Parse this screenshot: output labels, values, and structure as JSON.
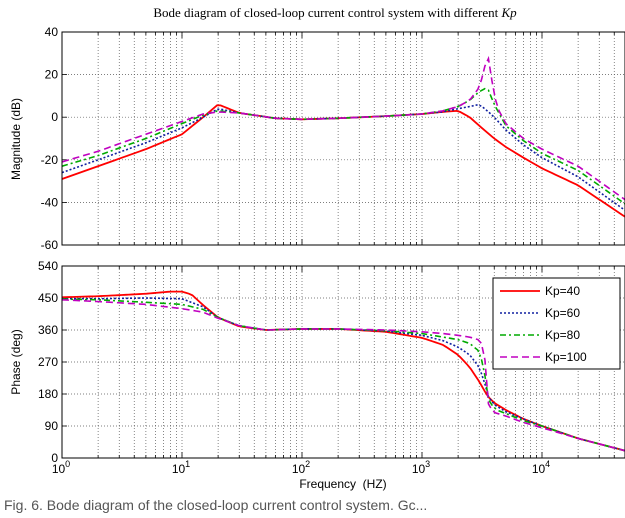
{
  "chart_data": [
    {
      "type": "line",
      "title": "Bode diagram of closed-loop current control system with different",
      "title_italic": "Kp",
      "xlabel": "",
      "ylabel": "Magnitude (dB)",
      "x_scale": "log",
      "xlim": [
        1,
        50000
      ],
      "ylim": [
        -60,
        40
      ],
      "y_ticks": [
        -60,
        -40,
        -20,
        0,
        20,
        40
      ],
      "grid": true,
      "series": [
        {
          "name": "Kp=40",
          "color": "#ff0000",
          "dash": "solid",
          "x": [
            1,
            2,
            5,
            10,
            15,
            20,
            30,
            60,
            100,
            200,
            500,
            1000,
            1500,
            2000,
            2500,
            3000,
            4000,
            5000,
            7000,
            10000,
            20000,
            50000
          ],
          "y": [
            -29,
            -23,
            -15,
            -8,
            0,
            6,
            2,
            -0.5,
            -1,
            -0.5,
            0.5,
            1.5,
            2.5,
            3,
            0,
            -4,
            -10,
            -14,
            -19,
            -24,
            -32,
            -47
          ]
        },
        {
          "name": "Kp=60",
          "color": "#1020a0",
          "dash": "dotted",
          "x": [
            1,
            2,
            5,
            10,
            15,
            20,
            30,
            60,
            100,
            200,
            500,
            1000,
            1500,
            2000,
            2500,
            3000,
            3500,
            4000,
            5000,
            7000,
            10000,
            20000,
            50000
          ],
          "y": [
            -26,
            -20,
            -12,
            -5,
            0,
            4,
            2,
            -0.5,
            -1,
            -0.5,
            0.5,
            1.5,
            2.5,
            4,
            5,
            6,
            3,
            0,
            -6,
            -13,
            -19,
            -28,
            -44
          ]
        },
        {
          "name": "Kp=80",
          "color": "#00aa00",
          "dash": "dashdot",
          "x": [
            1,
            2,
            5,
            10,
            15,
            20,
            30,
            60,
            100,
            200,
            500,
            1000,
            1500,
            2000,
            2500,
            3000,
            3500,
            4000,
            5000,
            7000,
            10000,
            20000,
            50000
          ],
          "y": [
            -23,
            -18,
            -10,
            -3,
            1,
            3,
            2,
            -0.5,
            -1,
            -0.5,
            0.5,
            1.5,
            3,
            5,
            8,
            12,
            14,
            6,
            -4,
            -11,
            -17,
            -25,
            -41
          ]
        },
        {
          "name": "Kp=100",
          "color": "#c000c0",
          "dash": "dashed",
          "x": [
            1,
            2,
            5,
            10,
            15,
            20,
            30,
            60,
            100,
            200,
            500,
            1000,
            1500,
            2000,
            2500,
            3000,
            3300,
            3500,
            3800,
            4200,
            5000,
            7000,
            10000,
            20000,
            50000
          ],
          "y": [
            -21,
            -16,
            -8,
            -2,
            1.5,
            2.5,
            2,
            -0.5,
            -1,
            -0.5,
            0.5,
            1.5,
            3,
            5,
            8,
            14,
            22,
            31,
            18,
            5,
            -3,
            -10,
            -15,
            -23,
            -39
          ]
        }
      ]
    },
    {
      "type": "line",
      "xlabel": "Frequency  (HZ)",
      "ylabel": "Phase (deg)",
      "x_scale": "log",
      "xlim": [
        1,
        50000
      ],
      "ylim": [
        0,
        540
      ],
      "x_tick_labels": [
        "10",
        "10",
        "10",
        "10",
        "10"
      ],
      "x_tick_exponents": [
        "0",
        "1",
        "2",
        "3",
        "4"
      ],
      "y_ticks": [
        0,
        90,
        180,
        270,
        360,
        450,
        540
      ],
      "grid": true,
      "legend": "top-right",
      "series": [
        {
          "name": "Kp=40",
          "color": "#ff0000",
          "dash": "solid",
          "x": [
            1,
            2,
            5,
            8,
            10,
            12,
            15,
            20,
            30,
            50,
            100,
            200,
            500,
            1000,
            1500,
            2000,
            2500,
            3000,
            3500,
            4000,
            5000,
            7000,
            10000,
            20000,
            50000
          ],
          "y": [
            452,
            455,
            462,
            468,
            468,
            460,
            430,
            395,
            370,
            360,
            363,
            363,
            355,
            338,
            318,
            290,
            255,
            215,
            175,
            155,
            135,
            110,
            90,
            55,
            20
          ]
        },
        {
          "name": "Kp=60",
          "color": "#1020a0",
          "dash": "dotted",
          "x": [
            1,
            2,
            5,
            10,
            15,
            20,
            30,
            50,
            100,
            200,
            500,
            1000,
            1500,
            2000,
            2500,
            3000,
            3300,
            3600,
            4000,
            5000,
            7000,
            10000,
            20000,
            50000
          ],
          "y": [
            448,
            448,
            450,
            448,
            425,
            395,
            372,
            360,
            363,
            363,
            357,
            345,
            330,
            312,
            290,
            255,
            215,
            170,
            150,
            130,
            110,
            90,
            55,
            20
          ]
        },
        {
          "name": "Kp=80",
          "color": "#00aa00",
          "dash": "dashdot",
          "x": [
            1,
            2,
            5,
            10,
            15,
            20,
            30,
            50,
            100,
            200,
            500,
            1000,
            1500,
            2000,
            2500,
            3000,
            3300,
            3500,
            3800,
            4200,
            5000,
            7000,
            10000,
            20000,
            50000
          ],
          "y": [
            447,
            445,
            438,
            432,
            418,
            395,
            372,
            360,
            363,
            363,
            358,
            350,
            340,
            333,
            322,
            300,
            250,
            170,
            150,
            135,
            125,
            105,
            90,
            55,
            20
          ]
        },
        {
          "name": "Kp=100",
          "color": "#c000c0",
          "dash": "dashed",
          "x": [
            1,
            2,
            5,
            10,
            15,
            20,
            30,
            50,
            100,
            200,
            500,
            1000,
            1500,
            2000,
            2500,
            3000,
            3300,
            3500,
            3700,
            4000,
            5000,
            7000,
            10000,
            20000,
            50000
          ],
          "y": [
            445,
            440,
            432,
            420,
            410,
            393,
            372,
            360,
            363,
            363,
            360,
            355,
            350,
            345,
            340,
            332,
            310,
            160,
            140,
            128,
            118,
            100,
            85,
            55,
            20
          ]
        }
      ]
    }
  ],
  "caption": "Fig. 6.  Bode diagram of the closed-loop current control system. Gc..."
}
